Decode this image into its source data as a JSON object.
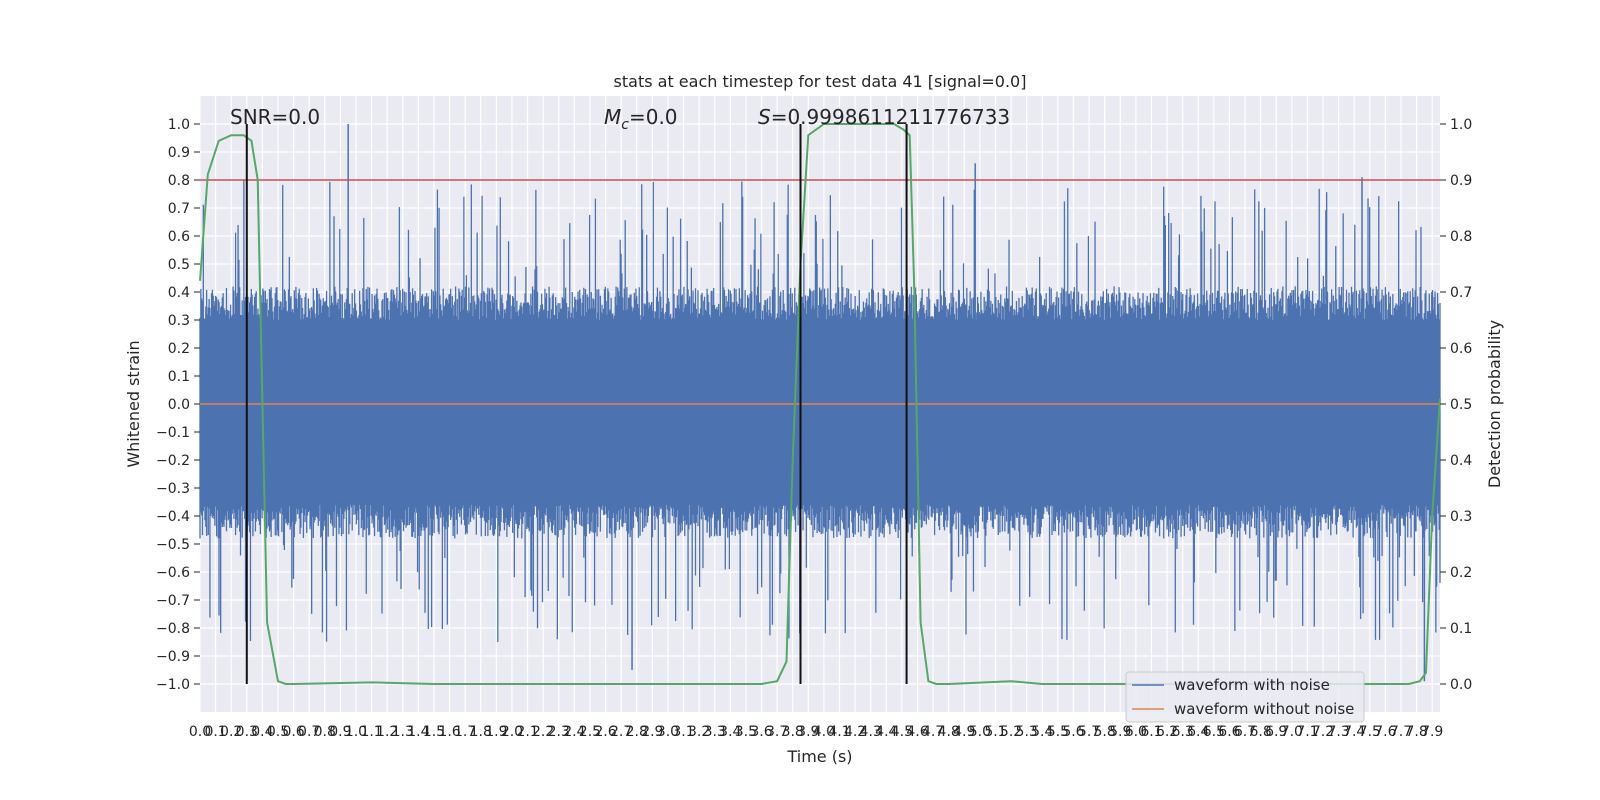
{
  "chart_data": {
    "type": "line",
    "title": "stats at each timestep for test data 41 [signal=0.0]",
    "xlabel": "Time (s)",
    "ylabel": "Whitened strain",
    "y2label": "Detection probability",
    "xlim": [
      0.0,
      7.95
    ],
    "ylim": [
      -1.1,
      1.1
    ],
    "y2lim": [
      -0.05,
      1.05
    ],
    "grid": true,
    "legend_position": "lower right",
    "x_ticks": [
      "0.0",
      "0.1",
      "0.2",
      "0.3",
      "0.4",
      "0.5",
      "0.6",
      "0.7",
      "0.8",
      "0.9",
      "1.0",
      "1.1",
      "1.2",
      "1.3",
      "1.4",
      "1.5",
      "1.6",
      "1.7",
      "1.8",
      "1.9",
      "2.0",
      "2.1",
      "2.2",
      "2.3",
      "2.4",
      "2.5",
      "2.6",
      "2.7",
      "2.8",
      "2.9",
      "3.0",
      "3.1",
      "3.2",
      "3.3",
      "3.4",
      "3.5",
      "3.6",
      "3.7",
      "3.8",
      "3.9",
      "4.0",
      "4.1",
      "4.2",
      "4.3",
      "4.4",
      "4.5",
      "4.6",
      "4.7",
      "4.8",
      "4.9",
      "5.0",
      "5.1",
      "5.2",
      "5.3",
      "5.4",
      "5.5",
      "5.6",
      "5.7",
      "5.8",
      "5.9",
      "6.0",
      "6.1",
      "6.2",
      "6.3",
      "6.4",
      "6.5",
      "6.6",
      "6.7",
      "6.8",
      "6.9",
      "7.0",
      "7.1",
      "7.2",
      "7.3",
      "7.4",
      "7.5",
      "7.6",
      "7.7",
      "7.8",
      "7.9"
    ],
    "y_ticks": [
      "1.0",
      "0.9",
      "0.8",
      "0.7",
      "0.6",
      "0.5",
      "0.4",
      "0.3",
      "0.2",
      "0.1",
      "0.0",
      "-0.1",
      "-0.2",
      "-0.3",
      "-0.4",
      "-0.5",
      "-0.6",
      "-0.7",
      "-0.8",
      "-0.9",
      "-1.0"
    ],
    "y2_ticks": [
      "1.0",
      "0.9",
      "0.8",
      "0.7",
      "0.6",
      "0.5",
      "0.4",
      "0.3",
      "0.2",
      "0.1",
      "0.0"
    ],
    "annotations": {
      "snr": "SNR=0.0",
      "mc_symbol": "M",
      "mc_sub": "c",
      "mc_value": "=0.0",
      "s_symbol": "S",
      "s_value": "=0.9998611211776733"
    },
    "threshold": {
      "value": 0.9,
      "axis": "y2",
      "color": "#c44e52"
    },
    "vertical_markers": [
      0.3,
      3.85,
      4.53
    ],
    "series": [
      {
        "name": "waveform with noise",
        "color": "#4c72b0",
        "kind": "noise",
        "amplitude_envelope": [
          -0.96,
          1.0
        ],
        "peaks": [
          {
            "x": 0.95,
            "y": 1.0
          },
          {
            "x": 4.97,
            "y": 0.86
          },
          {
            "x": 7.45,
            "y": 0.81
          },
          {
            "x": 2.77,
            "y": -0.95
          },
          {
            "x": 7.85,
            "y": -0.99
          }
        ]
      },
      {
        "name": "waveform without noise",
        "color": "#dd8452",
        "x": [
          0.0,
          7.95
        ],
        "y": [
          0.0,
          0.0
        ]
      },
      {
        "name": "detection probability",
        "color": "#55a868",
        "axis": "y2",
        "x": [
          0.0,
          0.05,
          0.12,
          0.2,
          0.28,
          0.33,
          0.37,
          0.43,
          0.5,
          0.55,
          0.6,
          1.1,
          1.5,
          2.5,
          3.5,
          3.6,
          3.7,
          3.76,
          3.8,
          3.85,
          3.9,
          3.95,
          4.0,
          4.1,
          4.45,
          4.51,
          4.55,
          4.58,
          4.62,
          4.67,
          4.72,
          4.8,
          5.2,
          5.4,
          6.0,
          7.0,
          7.75,
          7.82,
          7.86,
          7.9,
          7.95
        ],
        "y": [
          0.72,
          0.91,
          0.97,
          0.98,
          0.98,
          0.97,
          0.9,
          0.11,
          0.005,
          0.0,
          0.0,
          0.003,
          0.0,
          0.0,
          0.0,
          0.0,
          0.005,
          0.04,
          0.4,
          0.75,
          0.98,
          0.99,
          1.0,
          1.0,
          1.0,
          0.99,
          0.98,
          0.7,
          0.11,
          0.005,
          0.0,
          0.0,
          0.005,
          0.0,
          0.0,
          0.0,
          0.0,
          0.005,
          0.02,
          0.3,
          0.51
        ]
      }
    ]
  }
}
